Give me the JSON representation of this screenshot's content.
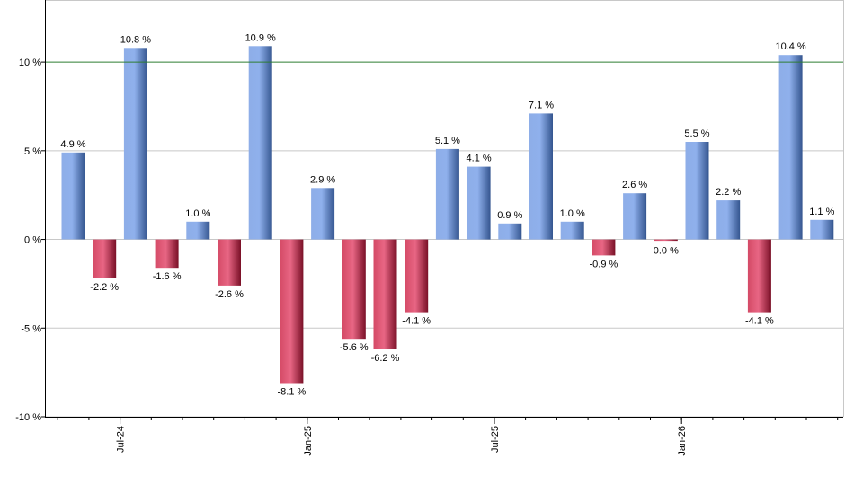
{
  "chart_data": {
    "type": "bar",
    "title": "",
    "xlabel": "",
    "ylabel": "",
    "ylim": [
      -10,
      13.5
    ],
    "y_ticks": [
      {
        "value": 10,
        "label": "10 %"
      },
      {
        "value": 5,
        "label": "5 %"
      },
      {
        "value": 0,
        "label": "0 %"
      },
      {
        "value": -5,
        "label": "-5 %"
      },
      {
        "value": -10,
        "label": "-10 %"
      }
    ],
    "x_tick_labels": [
      {
        "label": "Jul-24",
        "index": 1.5
      },
      {
        "label": "Jan-25",
        "index": 7.5
      },
      {
        "label": "Jul-25",
        "index": 13.5
      },
      {
        "label": "Jan-26",
        "index": 19.5
      }
    ],
    "reference_line": {
      "value": 10,
      "color": "#2e7d32"
    },
    "grid": true,
    "colors": {
      "positive": "#4f7fd6",
      "negative": "#c02848",
      "gridline": "#c8c8c8",
      "axis": "#000000"
    },
    "values": [
      4.9,
      -2.2,
      10.8,
      -1.6,
      1.0,
      -2.6,
      10.9,
      -8.1,
      2.9,
      -5.6,
      -6.2,
      -4.1,
      5.1,
      4.1,
      0.9,
      7.1,
      1.0,
      -0.9,
      2.6,
      0.0,
      5.5,
      2.2,
      -4.1,
      10.4,
      1.1
    ],
    "data_labels": [
      "4.9 %",
      "-2.2 %",
      "10.8 %",
      "-1.6 %",
      "1.0 %",
      "-2.6 %",
      "10.9 %",
      "-8.1 %",
      "2.9 %",
      "-5.6 %",
      "-6.2 %",
      "-4.1 %",
      "5.1 %",
      "4.1 %",
      "0.9 %",
      "7.1 %",
      "1.0 %",
      "-0.9 %",
      "2.6 %",
      "0.0 %",
      "5.5 %",
      "2.2 %",
      "-4.1 %",
      "10.4 %",
      "1.1 %"
    ]
  }
}
